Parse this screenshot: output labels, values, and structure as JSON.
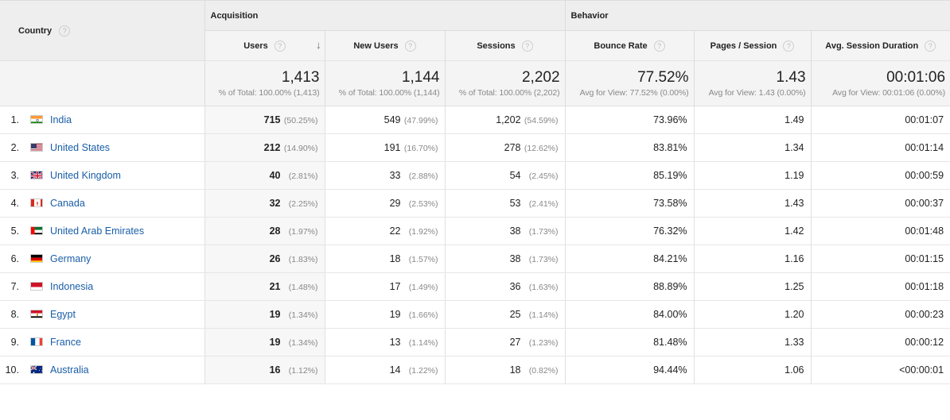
{
  "header": {
    "country_label": "Country",
    "acquisition_label": "Acquisition",
    "behavior_label": "Behavior",
    "help_glyph": "?",
    "sort_arrow": "↓",
    "columns": [
      "Users",
      "New Users",
      "Sessions",
      "Bounce Rate",
      "Pages / Session",
      "Avg. Session Duration"
    ]
  },
  "totals": [
    {
      "value": "1,413",
      "sub": "% of Total: 100.00% (1,413)"
    },
    {
      "value": "1,144",
      "sub": "% of Total: 100.00% (1,144)"
    },
    {
      "value": "2,202",
      "sub": "% of Total: 100.00% (2,202)"
    },
    {
      "value": "77.52%",
      "sub": "Avg for View: 77.52% (0.00%)"
    },
    {
      "value": "1.43",
      "sub": "Avg for View: 1.43 (0.00%)"
    },
    {
      "value": "00:01:06",
      "sub": "Avg for View: 00:01:06 (0.00%)"
    }
  ],
  "rows": [
    {
      "index": "1.",
      "country": "India",
      "flag": "india-flag-icon",
      "users": "715",
      "users_pct": "(50.25%)",
      "new_users": "549",
      "new_users_pct": "(47.99%)",
      "sessions": "1,202",
      "sessions_pct": "(54.59%)",
      "bounce_rate": "73.96%",
      "pages_per_session": "1.49",
      "avg_duration": "00:01:07"
    },
    {
      "index": "2.",
      "country": "United States",
      "flag": "us-flag-icon",
      "users": "212",
      "users_pct": "(14.90%)",
      "new_users": "191",
      "new_users_pct": "(16.70%)",
      "sessions": "278",
      "sessions_pct": "(12.62%)",
      "bounce_rate": "83.81%",
      "pages_per_session": "1.34",
      "avg_duration": "00:01:14"
    },
    {
      "index": "3.",
      "country": "United Kingdom",
      "flag": "uk-flag-icon",
      "users": "40",
      "users_pct": "(2.81%)",
      "new_users": "33",
      "new_users_pct": "(2.88%)",
      "sessions": "54",
      "sessions_pct": "(2.45%)",
      "bounce_rate": "85.19%",
      "pages_per_session": "1.19",
      "avg_duration": "00:00:59"
    },
    {
      "index": "4.",
      "country": "Canada",
      "flag": "canada-flag-icon",
      "users": "32",
      "users_pct": "(2.25%)",
      "new_users": "29",
      "new_users_pct": "(2.53%)",
      "sessions": "53",
      "sessions_pct": "(2.41%)",
      "bounce_rate": "73.58%",
      "pages_per_session": "1.43",
      "avg_duration": "00:00:37"
    },
    {
      "index": "5.",
      "country": "United Arab Emirates",
      "flag": "uae-flag-icon",
      "users": "28",
      "users_pct": "(1.97%)",
      "new_users": "22",
      "new_users_pct": "(1.92%)",
      "sessions": "38",
      "sessions_pct": "(1.73%)",
      "bounce_rate": "76.32%",
      "pages_per_session": "1.42",
      "avg_duration": "00:01:48"
    },
    {
      "index": "6.",
      "country": "Germany",
      "flag": "germany-flag-icon",
      "users": "26",
      "users_pct": "(1.83%)",
      "new_users": "18",
      "new_users_pct": "(1.57%)",
      "sessions": "38",
      "sessions_pct": "(1.73%)",
      "bounce_rate": "84.21%",
      "pages_per_session": "1.16",
      "avg_duration": "00:01:15"
    },
    {
      "index": "7.",
      "country": "Indonesia",
      "flag": "indonesia-flag-icon",
      "users": "21",
      "users_pct": "(1.48%)",
      "new_users": "17",
      "new_users_pct": "(1.49%)",
      "sessions": "36",
      "sessions_pct": "(1.63%)",
      "bounce_rate": "88.89%",
      "pages_per_session": "1.25",
      "avg_duration": "00:01:18"
    },
    {
      "index": "8.",
      "country": "Egypt",
      "flag": "egypt-flag-icon",
      "users": "19",
      "users_pct": "(1.34%)",
      "new_users": "19",
      "new_users_pct": "(1.66%)",
      "sessions": "25",
      "sessions_pct": "(1.14%)",
      "bounce_rate": "84.00%",
      "pages_per_session": "1.20",
      "avg_duration": "00:00:23"
    },
    {
      "index": "9.",
      "country": "France",
      "flag": "france-flag-icon",
      "users": "19",
      "users_pct": "(1.34%)",
      "new_users": "13",
      "new_users_pct": "(1.14%)",
      "sessions": "27",
      "sessions_pct": "(1.23%)",
      "bounce_rate": "81.48%",
      "pages_per_session": "1.33",
      "avg_duration": "00:00:12"
    },
    {
      "index": "10.",
      "country": "Australia",
      "flag": "australia-flag-icon",
      "users": "16",
      "users_pct": "(1.12%)",
      "new_users": "14",
      "new_users_pct": "(1.22%)",
      "sessions": "18",
      "sessions_pct": "(0.82%)",
      "bounce_rate": "94.44%",
      "pages_per_session": "1.06",
      "avg_duration": "<00:00:01"
    }
  ],
  "colors": {
    "link": "#1a5ea8",
    "header_bg": "#eeeeee",
    "subheader_bg": "#f4f4f4",
    "muted": "#888888"
  }
}
